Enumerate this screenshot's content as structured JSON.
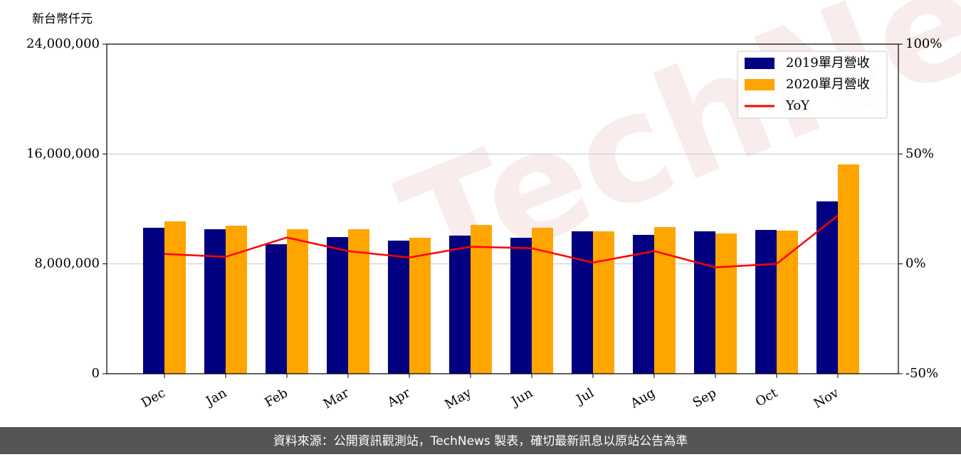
{
  "chart_data": {
    "type": "bar_line",
    "y_unit_label": "新台幣仟元",
    "watermark": "TechNews",
    "footer": "資料來源：公開資訊觀測站，TechNews 製表，確切最新訊息以原站公告為準",
    "categories": [
      "Dec",
      "Jan",
      "Feb",
      "Mar",
      "Apr",
      "May",
      "Jun",
      "Jul",
      "Aug",
      "Sep",
      "Oct",
      "Nov"
    ],
    "series": [
      {
        "name": "2019單月營收",
        "color": "#000080",
        "values": [
          10630000,
          10520000,
          9430000,
          9950000,
          9690000,
          10060000,
          9900000,
          10370000,
          10110000,
          10370000,
          10470000,
          12550000
        ]
      },
      {
        "name": "2020單月營收",
        "color": "#ffa500",
        "values": [
          11090000,
          10780000,
          10520000,
          10520000,
          9900000,
          10830000,
          10630000,
          10370000,
          10680000,
          10210000,
          10420000,
          15240000
        ]
      },
      {
        "name": "YoY",
        "color": "#ff0000",
        "axis": "y2",
        "values": [
          4.5,
          3.2,
          12.0,
          5.8,
          2.9,
          7.8,
          7.1,
          0.6,
          5.8,
          -1.6,
          0,
          22
        ]
      }
    ],
    "ylim": [
      0,
      24000000
    ],
    "yticks": [
      0,
      {
        "value": 8000000,
        "label": "8,000,000"
      },
      {
        "value": 16000000,
        "label": "16,000,000"
      },
      {
        "value": 24000000,
        "label": "24,000,000"
      }
    ],
    "y2lim": [
      -50,
      100
    ],
    "y2ticks": [
      {
        "value": -50,
        "label": "-50%"
      },
      {
        "value": 0,
        "label": "0%"
      },
      {
        "value": 50,
        "label": "50%"
      },
      {
        "value": 100,
        "label": "100%"
      }
    ],
    "grid": true,
    "legend": "upper right"
  }
}
